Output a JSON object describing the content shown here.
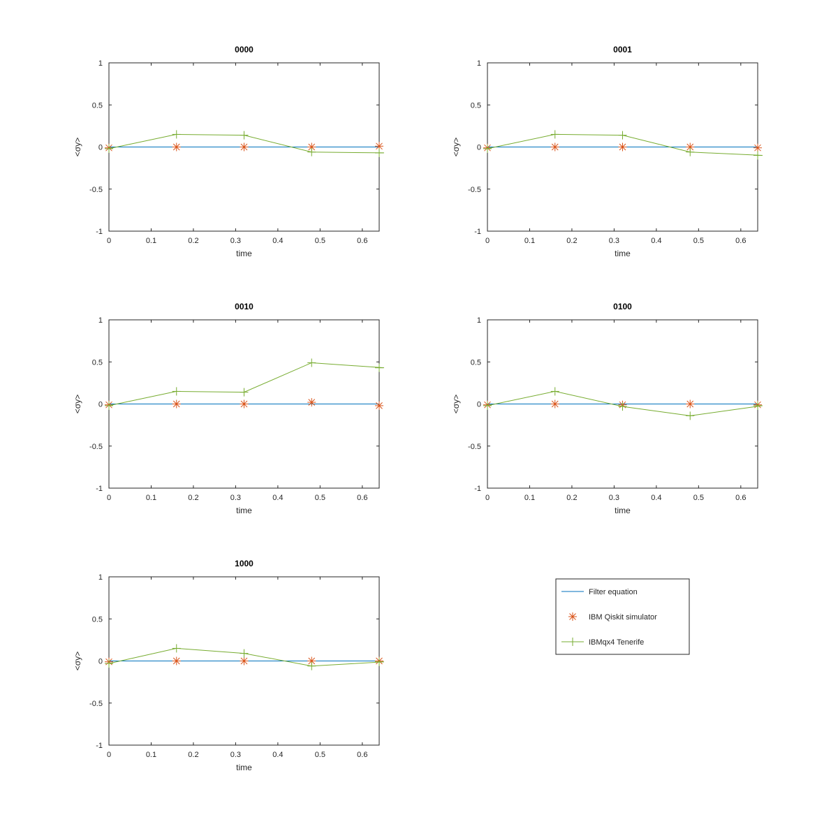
{
  "colors": {
    "filter": "#0072bd",
    "simulator": "#d95319",
    "tenerife": "#77ac30",
    "axes": "#262626",
    "background": "#ffffff"
  },
  "legend": {
    "entries": [
      {
        "label": "Filter equation",
        "marker": "line",
        "color": "#0072bd"
      },
      {
        "label": "IBM Qiskit simulator",
        "marker": "asterisk",
        "color": "#d95319"
      },
      {
        "label": "IBMqx4 Tenerife",
        "marker": "plus-line",
        "color": "#77ac30"
      }
    ]
  },
  "chart_data": [
    {
      "type": "line",
      "title": "0000",
      "xlabel": "time",
      "ylabel": "<σy>",
      "xlim": [
        0,
        0.64
      ],
      "ylim": [
        -1,
        1
      ],
      "xticks": [
        "0",
        "0.1",
        "0.2",
        "0.3",
        "0.4",
        "0.5",
        "0.6"
      ],
      "yticks": [
        "-1",
        "-0.5",
        "0",
        "0.5",
        "1"
      ],
      "x": [
        0,
        0.16,
        0.32,
        0.48,
        0.64
      ],
      "series": [
        {
          "name": "Filter equation",
          "values": [
            0,
            0,
            0,
            0,
            0
          ]
        },
        {
          "name": "IBM Qiskit simulator",
          "values": [
            -0.01,
            0.0,
            0.0,
            0.0,
            0.01
          ]
        },
        {
          "name": "IBMqx4 Tenerife",
          "values": [
            -0.02,
            0.15,
            0.14,
            -0.06,
            -0.07
          ]
        }
      ]
    },
    {
      "type": "line",
      "title": "0001",
      "xlabel": "time",
      "ylabel": "<σy>",
      "xlim": [
        0,
        0.64
      ],
      "ylim": [
        -1,
        1
      ],
      "xticks": [
        "0",
        "0.1",
        "0.2",
        "0.3",
        "0.4",
        "0.5",
        "0.6"
      ],
      "yticks": [
        "-1",
        "-0.5",
        "0",
        "0.5",
        "1"
      ],
      "x": [
        0,
        0.16,
        0.32,
        0.48,
        0.64
      ],
      "series": [
        {
          "name": "Filter equation",
          "values": [
            0,
            0,
            0,
            0,
            0
          ]
        },
        {
          "name": "IBM Qiskit simulator",
          "values": [
            -0.01,
            0.0,
            0.0,
            0.0,
            -0.01
          ]
        },
        {
          "name": "IBMqx4 Tenerife",
          "values": [
            -0.02,
            0.15,
            0.14,
            -0.06,
            -0.1
          ]
        }
      ]
    },
    {
      "type": "line",
      "title": "0010",
      "xlabel": "time",
      "ylabel": "<σy>",
      "xlim": [
        0,
        0.64
      ],
      "ylim": [
        -1,
        1
      ],
      "xticks": [
        "0",
        "0.1",
        "0.2",
        "0.3",
        "0.4",
        "0.5",
        "0.6"
      ],
      "yticks": [
        "-1",
        "-0.5",
        "0",
        "0.5",
        "1"
      ],
      "x": [
        0,
        0.16,
        0.32,
        0.48,
        0.64
      ],
      "series": [
        {
          "name": "Filter equation",
          "values": [
            0,
            0,
            0,
            0,
            0
          ]
        },
        {
          "name": "IBM Qiskit simulator",
          "values": [
            -0.01,
            0.0,
            0.0,
            0.02,
            -0.02
          ]
        },
        {
          "name": "IBMqx4 Tenerife",
          "values": [
            -0.02,
            0.15,
            0.14,
            0.49,
            0.43
          ]
        }
      ]
    },
    {
      "type": "line",
      "title": "0100",
      "xlabel": "time",
      "ylabel": "<σy>",
      "xlim": [
        0,
        0.64
      ],
      "ylim": [
        -1,
        1
      ],
      "xticks": [
        "0",
        "0.1",
        "0.2",
        "0.3",
        "0.4",
        "0.5",
        "0.6"
      ],
      "yticks": [
        "-1",
        "-0.5",
        "0",
        "0.5",
        "1"
      ],
      "x": [
        0,
        0.16,
        0.32,
        0.48,
        0.64
      ],
      "series": [
        {
          "name": "Filter equation",
          "values": [
            0,
            0,
            0,
            0,
            0
          ]
        },
        {
          "name": "IBM Qiskit simulator",
          "values": [
            -0.01,
            0.0,
            -0.01,
            0.0,
            -0.01
          ]
        },
        {
          "name": "IBMqx4 Tenerife",
          "values": [
            -0.02,
            0.15,
            -0.03,
            -0.14,
            -0.02
          ]
        }
      ]
    },
    {
      "type": "line",
      "title": "1000",
      "xlabel": "time",
      "ylabel": "<σy>",
      "xlim": [
        0,
        0.64
      ],
      "ylim": [
        -1,
        1
      ],
      "xticks": [
        "0",
        "0.1",
        "0.2",
        "0.3",
        "0.4",
        "0.5",
        "0.6"
      ],
      "yticks": [
        "-1",
        "-0.5",
        "0",
        "0.5",
        "1"
      ],
      "x": [
        0,
        0.16,
        0.32,
        0.48,
        0.64
      ],
      "series": [
        {
          "name": "Filter equation",
          "values": [
            0,
            0,
            0,
            0,
            0
          ]
        },
        {
          "name": "IBM Qiskit simulator",
          "values": [
            -0.01,
            0.0,
            0.0,
            0.0,
            0.0
          ]
        },
        {
          "name": "IBMqx4 Tenerife",
          "values": [
            -0.03,
            0.15,
            0.09,
            -0.06,
            -0.01
          ]
        }
      ]
    }
  ]
}
